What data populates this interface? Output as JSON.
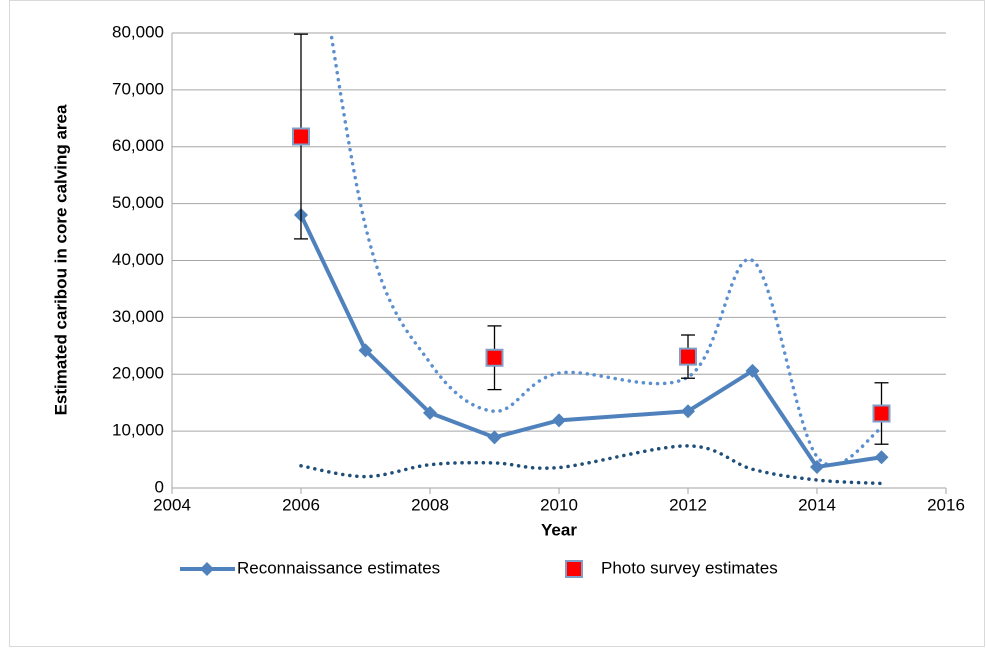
{
  "chart_data": {
    "type": "line",
    "y_label": "Estimated caribou in core calving area",
    "x_label": "Year",
    "x": [
      2006,
      2007,
      2008,
      2009,
      2010,
      2012,
      2013,
      2014,
      2015
    ],
    "xlim": [
      2004,
      2016
    ],
    "xticks": [
      2004,
      2006,
      2008,
      2010,
      2012,
      2014,
      2016
    ],
    "ylim": [
      0,
      80000
    ],
    "yticks": [
      {
        "value": 0,
        "label": "0"
      },
      {
        "value": 10000,
        "label": "10,000"
      },
      {
        "value": 20000,
        "label": "20,000"
      },
      {
        "value": 30000,
        "label": "30,000"
      },
      {
        "value": 40000,
        "label": "40,000"
      },
      {
        "value": 50000,
        "label": "50,000"
      },
      {
        "value": 60000,
        "label": "60,000"
      },
      {
        "value": 70000,
        "label": "70,000"
      },
      {
        "value": 80000,
        "label": "80,000"
      }
    ],
    "grid": true,
    "legend": "bottom",
    "series": [
      {
        "name": "Reconnaissance estimates",
        "color": "#4f81bd",
        "style": "solid",
        "marker": "diamond",
        "values": [
          48000,
          24200,
          13200,
          8900,
          11900,
          13500,
          20600,
          3700,
          5400
        ]
      },
      {
        "name": "Photo survey estimates",
        "color": "#ff0000",
        "style": "none",
        "marker": "square",
        "values": [
          61800,
          null,
          null,
          22900,
          null,
          23100,
          null,
          null,
          13100
        ],
        "errors": [
          18000,
          null,
          null,
          5600,
          null,
          3800,
          null,
          null,
          5400
        ]
      },
      {
        "color": "#5b8fd0",
        "style": "dotted",
        "smooth": true,
        "values": [
          115000,
          46000,
          22000,
          13500,
          20200,
          19500,
          40000,
          5500,
          10500
        ]
      },
      {
        "color": "#1f4e79",
        "style": "dotted",
        "smooth": true,
        "values": [
          3900,
          2000,
          4100,
          4400,
          3600,
          7400,
          3300,
          1400,
          800
        ]
      }
    ]
  }
}
